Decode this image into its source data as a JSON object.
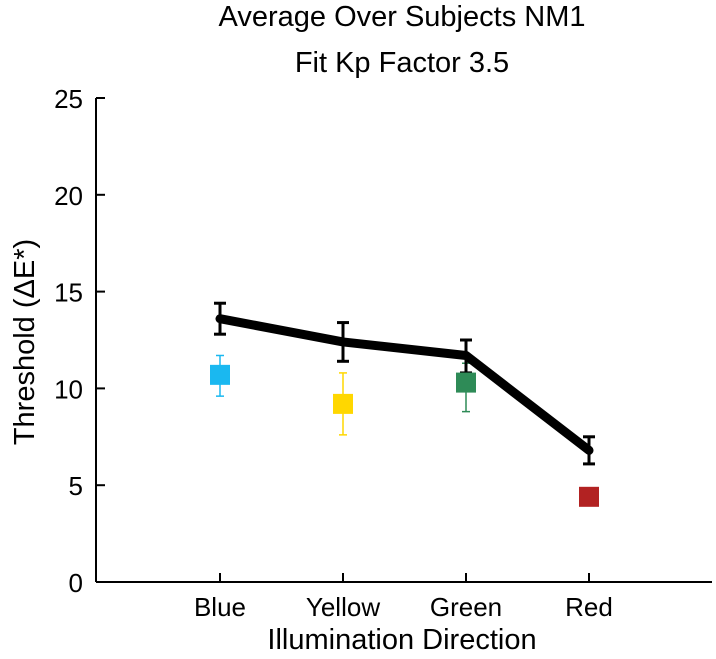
{
  "chart_data": {
    "type": "line",
    "title_lines": [
      "Average Over Subjects NM1",
      "Fit Kp Factor 3.5"
    ],
    "xlabel": "Illumination Direction",
    "ylabel": "Threshold (ΔE*)",
    "categories": [
      "Blue",
      "Yellow",
      "Green",
      "Red"
    ],
    "ylim": [
      0,
      25
    ],
    "yticks": [
      0,
      5,
      10,
      15,
      20,
      25
    ],
    "grid": false,
    "line_series": {
      "color": "#000000",
      "values": [
        13.6,
        12.4,
        11.7,
        6.8
      ],
      "err_low": [
        12.8,
        11.4,
        10.8,
        6.1
      ],
      "err_high": [
        14.4,
        13.4,
        12.5,
        7.5
      ]
    },
    "marker_series": {
      "values": [
        10.7,
        9.2,
        10.3,
        4.4
      ],
      "err_low": [
        9.6,
        7.6,
        8.8,
        4.4
      ],
      "err_high": [
        11.7,
        10.8,
        11.3,
        4.4
      ],
      "colors": [
        "#1ab8f0",
        "#ffd700",
        "#2e8b57",
        "#b22222"
      ]
    }
  }
}
